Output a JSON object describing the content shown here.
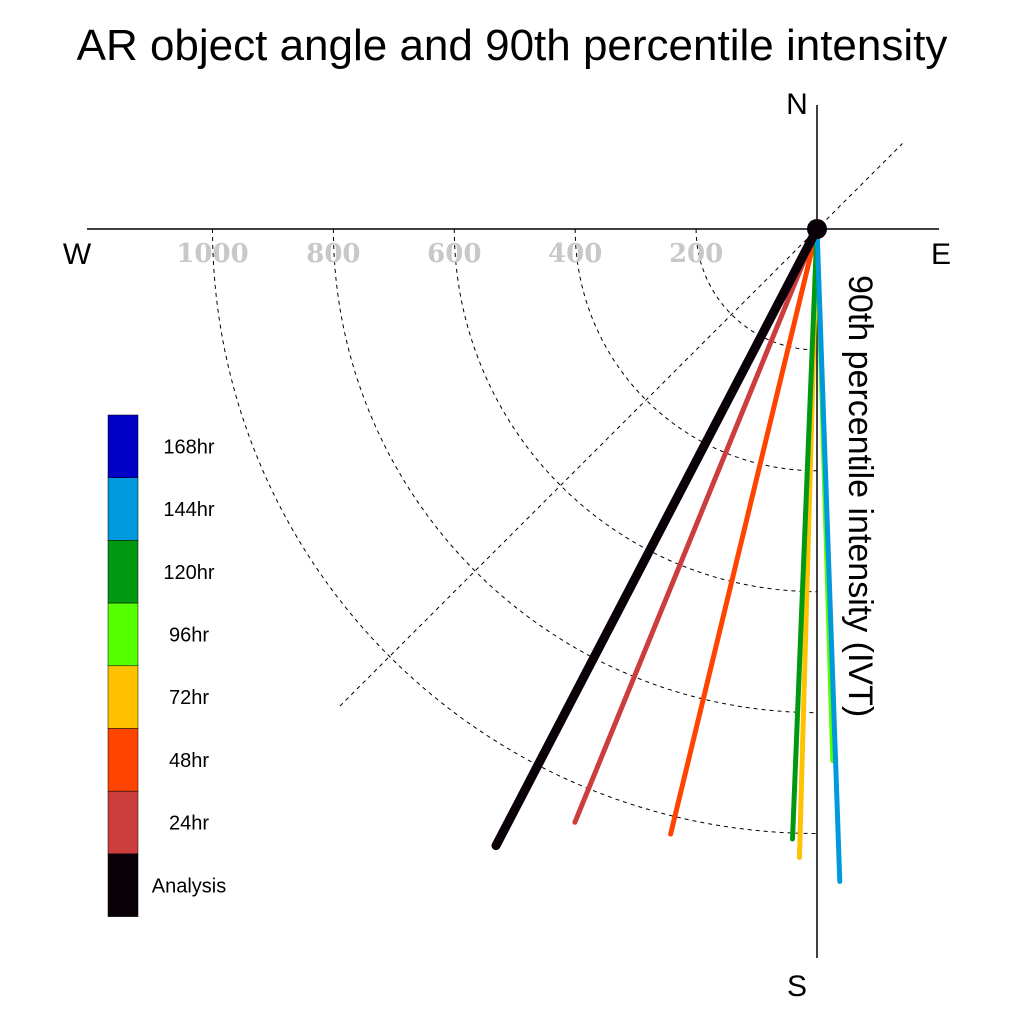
{
  "chart_data": {
    "type": "polar-vector",
    "title": "AR object angle and 90th percentile intensity",
    "ylabel": "90th percentile intensity (IVT)",
    "directions": {
      "north": "N",
      "south": "S",
      "east": "E",
      "west": "W"
    },
    "radial_ticks": [
      200,
      400,
      600,
      800,
      1000
    ],
    "radial_tick_labels": [
      "200",
      "400",
      "600",
      "800",
      "1000"
    ],
    "rmax": 1200,
    "guide_line_angle_deg": 225,
    "series": [
      {
        "name": "Analysis",
        "color": "#0a0008",
        "angle_deg": 207.5,
        "magnitude": 1150,
        "width": 9
      },
      {
        "name": "24hr",
        "color": "#cc3d3d",
        "angle_deg": 202.2,
        "magnitude": 1060,
        "width": 5
      },
      {
        "name": "48hr",
        "color": "#ff4400",
        "angle_deg": 193.6,
        "magnitude": 1030,
        "width": 5
      },
      {
        "name": "72hr",
        "color": "#ffc200",
        "angle_deg": 181.6,
        "magnitude": 1040,
        "width": 5
      },
      {
        "name": "96hr",
        "color": "#55ff00",
        "angle_deg": 178.3,
        "magnitude": 880,
        "width": 5
      },
      {
        "name": "120hr",
        "color": "#009911",
        "angle_deg": 182.3,
        "magnitude": 1010,
        "width": 5
      },
      {
        "name": "144hr",
        "color": "#0099dd",
        "angle_deg": 178.0,
        "magnitude": 1080,
        "width": 5
      },
      {
        "name": "168hr",
        "color": "#0000c8",
        "angle_deg": 0,
        "magnitude": 0,
        "width": 5
      }
    ],
    "legend": {
      "placement": "left",
      "entries": [
        {
          "label": "168hr",
          "color": "#0000c8"
        },
        {
          "label": "144hr",
          "color": "#0099dd"
        },
        {
          "label": "120hr",
          "color": "#009911"
        },
        {
          "label": "96hr",
          "color": "#55ff00"
        },
        {
          "label": "72hr",
          "color": "#ffc200"
        },
        {
          "label": "48hr",
          "color": "#ff4400"
        },
        {
          "label": "24hr",
          "color": "#cc3d3d"
        },
        {
          "label": "Analysis",
          "color": "#0a0008"
        }
      ]
    }
  }
}
